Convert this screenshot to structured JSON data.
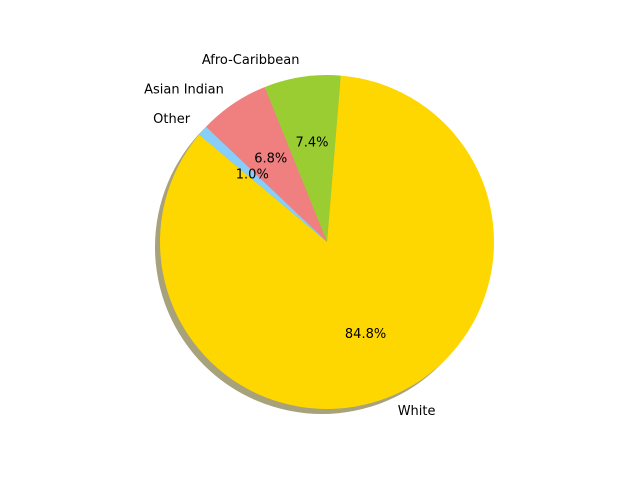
{
  "chart_data": {
    "type": "pie",
    "title": "",
    "shadow": true,
    "direction": "counterclockwise",
    "start_angle_deg": 140,
    "slices": [
      {
        "label": "White",
        "value": 84.8,
        "pct_label": "84.8%",
        "color": "#FFD700"
      },
      {
        "label": "Afro-Caribbean",
        "value": 7.4,
        "pct_label": "7.4%",
        "color": "#9ACD32"
      },
      {
        "label": "Asian Indian",
        "value": 6.8,
        "pct_label": "6.8%",
        "color": "#F08080"
      },
      {
        "label": "Other",
        "value": 1.0,
        "pct_label": "1.0%",
        "color": "#87CEFA"
      }
    ]
  }
}
